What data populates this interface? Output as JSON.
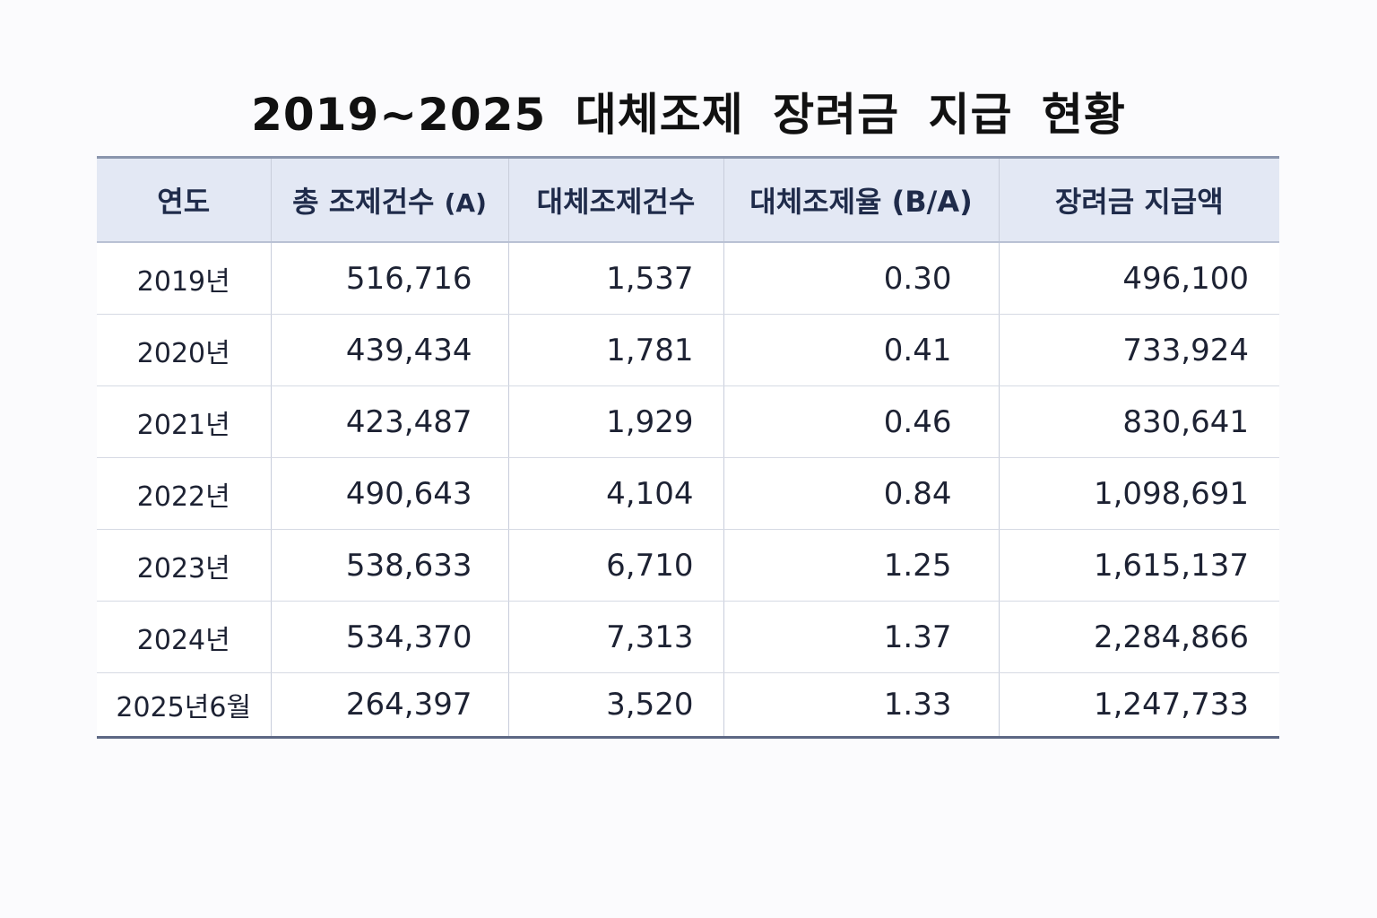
{
  "title": "2019~2025 대체조제 장려금 지급 현황",
  "table": {
    "headers": {
      "year": "연도",
      "total": "총 조제건수",
      "total_suffix": "(A)",
      "substitute": "대체조제건수",
      "rate": "대체조제율 (B/A)",
      "incentive": "장려금 지급액"
    },
    "rows": [
      {
        "year": "2019년",
        "total": "516,716",
        "substitute": "1,537",
        "rate": "0.30",
        "incentive": "496,100"
      },
      {
        "year": "2020년",
        "total": "439,434",
        "substitute": "1,781",
        "rate": "0.41",
        "incentive": "733,924"
      },
      {
        "year": "2021년",
        "total": "423,487",
        "substitute": "1,929",
        "rate": "0.46",
        "incentive": "830,641"
      },
      {
        "year": "2022년",
        "total": "490,643",
        "substitute": "4,104",
        "rate": "0.84",
        "incentive": "1,098,691"
      },
      {
        "year": "2023년",
        "total": "538,633",
        "substitute": "6,710",
        "rate": "1.25",
        "incentive": "1,615,137"
      },
      {
        "year": "2024년",
        "total": "534,370",
        "substitute": "7,313",
        "rate": "1.37",
        "incentive": "2,284,866"
      },
      {
        "year": "2025년6월",
        "total": "264,397",
        "substitute": "3,520",
        "rate": "1.33",
        "incentive": "1,247,733"
      }
    ]
  }
}
